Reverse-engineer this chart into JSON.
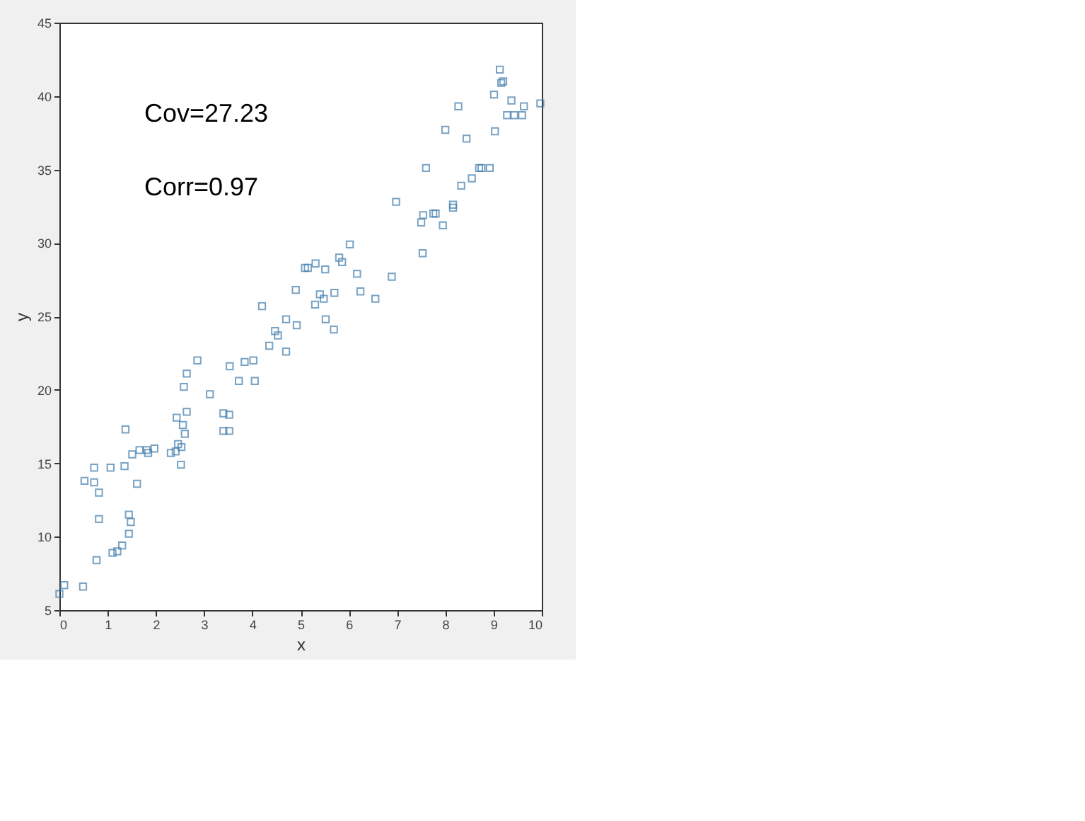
{
  "chart_data": {
    "type": "scatter",
    "xlabel": "x",
    "ylabel": "y",
    "annotations": [
      "Cov=27.23",
      "Corr=0.97"
    ],
    "marker": "square",
    "grid": false,
    "xlim": [
      0,
      10
    ],
    "xticks": [
      0,
      1,
      2,
      3,
      4,
      5,
      6,
      7,
      8,
      9,
      10
    ],
    "ylim": [
      5,
      45
    ],
    "yticks": [
      5,
      10,
      15,
      20,
      25,
      30,
      35,
      40,
      45
    ],
    "x": [
      0.0,
      0.1,
      0.49,
      0.52,
      0.72,
      0.72,
      0.82,
      0.82,
      0.77,
      1.06,
      1.1,
      1.2,
      1.3,
      1.37,
      1.35,
      1.44,
      1.48,
      1.44,
      1.51,
      1.61,
      1.66,
      1.81,
      1.84,
      1.97,
      2.31,
      2.41,
      2.46,
      2.53,
      2.52,
      2.43,
      2.56,
      2.6,
      2.64,
      2.58,
      2.64,
      2.86,
      3.12,
      3.4,
      3.52,
      3.4,
      3.52,
      3.53,
      3.72,
      3.84,
      4.02,
      4.05,
      4.2,
      4.35,
      4.47,
      4.53,
      4.7,
      4.7,
      4.92,
      4.9,
      5.09,
      5.15,
      5.31,
      5.51,
      5.3,
      5.4,
      5.48,
      5.7,
      5.52,
      5.69,
      5.8,
      5.86,
      6.02,
      6.17,
      6.24,
      6.55,
      6.89,
      6.98,
      7.5,
      7.54,
      7.53,
      7.6,
      7.75,
      7.8,
      7.95,
      8.0,
      8.16,
      8.16,
      8.27,
      8.33,
      8.44,
      8.55,
      8.7,
      8.75,
      8.92,
      9.01,
      9.03,
      9.13,
      9.16,
      9.2,
      9.37,
      9.28,
      9.43,
      9.59,
      9.63,
      9.97
    ],
    "series": [
      {
        "color": "#3f7cac",
        "values": [
          6.1,
          6.7,
          6.6,
          13.8,
          14.7,
          13.7,
          13.0,
          11.2,
          8.4,
          14.7,
          8.9,
          9.0,
          9.4,
          17.3,
          14.8,
          11.5,
          11.0,
          10.2,
          15.6,
          13.6,
          15.9,
          15.9,
          15.7,
          16.0,
          15.7,
          15.8,
          16.3,
          16.1,
          14.9,
          18.1,
          17.6,
          17.0,
          18.5,
          20.2,
          21.1,
          22.0,
          19.7,
          18.4,
          18.3,
          17.2,
          17.2,
          21.6,
          20.6,
          21.9,
          22.0,
          20.6,
          25.7,
          23.0,
          24.0,
          23.7,
          24.8,
          22.6,
          24.4,
          26.8,
          28.3,
          28.3,
          28.6,
          28.2,
          25.8,
          26.5,
          26.2,
          26.6,
          24.8,
          24.1,
          29.0,
          28.7,
          29.9,
          27.9,
          26.7,
          26.2,
          27.7,
          32.8,
          31.4,
          31.9,
          29.3,
          35.1,
          32.0,
          32.0,
          31.2,
          37.7,
          32.6,
          32.4,
          39.3,
          33.9,
          37.1,
          34.4,
          35.1,
          35.1,
          35.1,
          40.1,
          37.6,
          41.8,
          40.9,
          41.0,
          39.7,
          38.7,
          38.7,
          38.7,
          39.3,
          39.5
        ]
      }
    ]
  }
}
